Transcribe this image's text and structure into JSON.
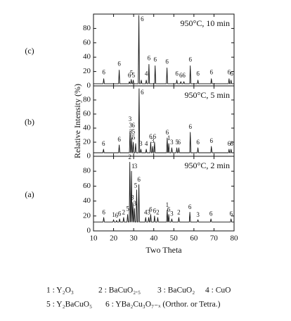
{
  "chart_data": [
    {
      "type": "line",
      "label": "(c)",
      "title": "950°C, 10 min",
      "color": "#111111",
      "xlim": [
        10,
        80
      ],
      "xticks": [
        10,
        20,
        30,
        40,
        50,
        60,
        70,
        80
      ],
      "ylim": [
        0,
        100
      ],
      "yticks": [
        0,
        20,
        40,
        60,
        80
      ],
      "x": [
        10,
        14.8,
        15.1,
        15.4,
        22.5,
        22.8,
        23.1,
        27.6,
        27.9,
        28.2,
        28.5,
        28.8,
        29.1,
        29.5,
        29.8,
        30.1,
        32.3,
        32.6,
        32.9,
        33.5,
        33.8,
        34.1,
        36.0,
        36.3,
        36.6,
        37.3,
        37.6,
        37.9,
        40.4,
        40.7,
        41.0,
        46.3,
        46.6,
        46.9,
        51.2,
        51.5,
        51.8,
        53.2,
        53.5,
        53.8,
        54.7,
        55.0,
        55.3,
        57.9,
        58.2,
        58.5,
        61.7,
        62.0,
        62.3,
        68.4,
        68.7,
        69.0,
        77.2,
        77.5,
        77.8,
        78.2,
        78.5,
        78.8,
        80
      ],
      "values": [
        3,
        3,
        10,
        3,
        3,
        22,
        3,
        3,
        6,
        3,
        3,
        9,
        3,
        3,
        8,
        3,
        3,
        98,
        3,
        3,
        8,
        3,
        3,
        8,
        3,
        3,
        30,
        3,
        3,
        28,
        3,
        3,
        25,
        3,
        3,
        8,
        3,
        3,
        6,
        3,
        3,
        6,
        3,
        3,
        28,
        3,
        3,
        8,
        3,
        3,
        10,
        3,
        3,
        10,
        3,
        3,
        8,
        3,
        3
      ],
      "annotations": [
        {
          "x": 15.1,
          "y": 18,
          "text": "6"
        },
        {
          "x": 22.8,
          "y": 30,
          "text": "6"
        },
        {
          "x": 27.9,
          "y": 14,
          "text": "6"
        },
        {
          "x": 28.9,
          "y": 17,
          "text": "5"
        },
        {
          "x": 29.9,
          "y": 14,
          "text": "5"
        },
        {
          "x": 34.3,
          "y": 92,
          "text": "6"
        },
        {
          "x": 36.3,
          "y": 16,
          "text": "4"
        },
        {
          "x": 37.6,
          "y": 38,
          "text": "6"
        },
        {
          "x": 40.7,
          "y": 36,
          "text": "6"
        },
        {
          "x": 46.6,
          "y": 33,
          "text": "6"
        },
        {
          "x": 51.5,
          "y": 16,
          "text": "6"
        },
        {
          "x": 53.5,
          "y": 14,
          "text": "6"
        },
        {
          "x": 55.0,
          "y": 14,
          "text": "6"
        },
        {
          "x": 58.2,
          "y": 36,
          "text": "6"
        },
        {
          "x": 62.0,
          "y": 16,
          "text": "6"
        },
        {
          "x": 68.7,
          "y": 18,
          "text": "6"
        },
        {
          "x": 77.5,
          "y": 18,
          "text": "6"
        },
        {
          "x": 78.8,
          "y": 16,
          "text": "6"
        }
      ]
    },
    {
      "type": "line",
      "label": "(b)",
      "title": "950°C, 5 min",
      "color": "#111111",
      "ylabel": "Relative Intensity  (%)",
      "xlim": [
        10,
        80
      ],
      "xticks": [
        10,
        20,
        30,
        40,
        50,
        60,
        70,
        80
      ],
      "ylim": [
        0,
        100
      ],
      "yticks": [
        0,
        20,
        40,
        60,
        80
      ],
      "x": [
        10,
        14.7,
        15.0,
        15.3,
        22.5,
        22.8,
        23.1,
        27.9,
        28.2,
        28.5,
        28.7,
        29.0,
        29.3,
        29.5,
        29.8,
        30.1,
        30.7,
        31.0,
        31.3,
        32.4,
        32.7,
        33.0,
        33.3,
        33.6,
        33.9,
        36.0,
        36.3,
        36.6,
        38.2,
        38.5,
        38.8,
        39.2,
        39.5,
        39.8,
        40.1,
        40.4,
        40.7,
        46.4,
        46.7,
        47.0,
        47.2,
        47.5,
        47.8,
        48.7,
        49.0,
        49.3,
        51.2,
        51.5,
        51.8,
        52.2,
        52.5,
        52.8,
        57.9,
        58.2,
        58.5,
        61.7,
        62.0,
        62.3,
        68.4,
        68.7,
        69.0,
        77.2,
        77.5,
        77.8,
        78.2,
        78.5,
        78.8,
        80
      ],
      "values": [
        5,
        5,
        10,
        5,
        5,
        16,
        5,
        5,
        36,
        5,
        5,
        26,
        5,
        5,
        20,
        5,
        5,
        18,
        5,
        5,
        96,
        5,
        5,
        10,
        5,
        5,
        10,
        5,
        5,
        20,
        5,
        5,
        14,
        5,
        5,
        20,
        5,
        5,
        26,
        5,
        5,
        18,
        5,
        5,
        12,
        5,
        5,
        12,
        5,
        5,
        12,
        5,
        5,
        34,
        5,
        5,
        12,
        5,
        5,
        14,
        5,
        5,
        10,
        5,
        5,
        10,
        5,
        5
      ],
      "annotations": [
        {
          "x": 15.0,
          "y": 17,
          "text": "6"
        },
        {
          "x": 22.8,
          "y": 23,
          "text": "6"
        },
        {
          "x": 28.2,
          "y": 52,
          "text": "3"
        },
        {
          "x": 28.4,
          "y": 43,
          "text": "3"
        },
        {
          "x": 29.8,
          "y": 43,
          "text": "6"
        },
        {
          "x": 28.6,
          "y": 34,
          "text": "3"
        },
        {
          "x": 29.9,
          "y": 34,
          "text": "5"
        },
        {
          "x": 28.8,
          "y": 26,
          "text": "5"
        },
        {
          "x": 30.0,
          "y": 26,
          "text": "5"
        },
        {
          "x": 34.3,
          "y": 90,
          "text": "6"
        },
        {
          "x": 33.6,
          "y": 17,
          "text": "3"
        },
        {
          "x": 36.3,
          "y": 17,
          "text": "4"
        },
        {
          "x": 38.5,
          "y": 27,
          "text": "6"
        },
        {
          "x": 39.5,
          "y": 21,
          "text": "3"
        },
        {
          "x": 40.4,
          "y": 27,
          "text": "6"
        },
        {
          "x": 46.7,
          "y": 33,
          "text": "6"
        },
        {
          "x": 47.5,
          "y": 25,
          "text": "1"
        },
        {
          "x": 49.0,
          "y": 19,
          "text": "3"
        },
        {
          "x": 51.5,
          "y": 19,
          "text": "5"
        },
        {
          "x": 52.6,
          "y": 19,
          "text": "6"
        },
        {
          "x": 58.2,
          "y": 41,
          "text": "6"
        },
        {
          "x": 62.0,
          "y": 19,
          "text": "6"
        },
        {
          "x": 68.7,
          "y": 21,
          "text": "6"
        },
        {
          "x": 77.5,
          "y": 17,
          "text": "6"
        },
        {
          "x": 78.8,
          "y": 17,
          "text": "6"
        }
      ]
    },
    {
      "type": "line",
      "label": "(a)",
      "title": "950°C, 2 min",
      "color": "#111111",
      "xlabel": "Two Theta",
      "xlim": [
        10,
        80
      ],
      "xticks": [
        10,
        20,
        30,
        40,
        50,
        60,
        70,
        80
      ],
      "ylim": [
        0,
        100
      ],
      "yticks": [
        0,
        20,
        40,
        60,
        80
      ],
      "x": [
        10,
        14.8,
        15.1,
        15.4,
        19.7,
        20.0,
        20.3,
        21.2,
        21.5,
        21.8,
        22.7,
        23.0,
        23.3,
        24.7,
        25.0,
        25.3,
        26.7,
        27.0,
        27.3,
        27.8,
        28.1,
        28.4,
        28.6,
        28.9,
        29.2,
        29.3,
        29.6,
        29.9,
        30.1,
        30.4,
        30.7,
        31.2,
        31.5,
        31.8,
        32.3,
        32.6,
        32.9,
        35.7,
        36.0,
        36.3,
        37.2,
        37.5,
        37.8,
        38.2,
        38.5,
        38.8,
        40.1,
        40.4,
        40.7,
        41.7,
        42.0,
        42.3,
        46.4,
        46.7,
        47.0,
        47.2,
        47.5,
        47.8,
        48.7,
        49.0,
        49.3,
        52.2,
        52.5,
        52.8,
        57.7,
        58.0,
        58.3,
        61.7,
        62.0,
        62.3,
        68.2,
        68.5,
        68.8,
        78.2,
        78.5,
        78.8,
        80
      ],
      "values": [
        12,
        12,
        18,
        12,
        12,
        15,
        12,
        12,
        14,
        12,
        12,
        16,
        12,
        12,
        18,
        12,
        12,
        22,
        12,
        12,
        92,
        12,
        12,
        80,
        12,
        12,
        38,
        12,
        12,
        30,
        12,
        12,
        55,
        12,
        12,
        62,
        12,
        12,
        18,
        12,
        12,
        18,
        12,
        12,
        22,
        12,
        12,
        20,
        12,
        12,
        18,
        12,
        12,
        28,
        12,
        12,
        22,
        12,
        12,
        16,
        12,
        12,
        18,
        12,
        12,
        25,
        12,
        12,
        15,
        12,
        12,
        16,
        12,
        12,
        16,
        12,
        12
      ],
      "annotations": [
        {
          "x": 15.1,
          "y": 24,
          "text": "6"
        },
        {
          "x": 20.0,
          "y": 21,
          "text": "1"
        },
        {
          "x": 21.5,
          "y": 20,
          "text": "6"
        },
        {
          "x": 23.0,
          "y": 22,
          "text": "6"
        },
        {
          "x": 25.0,
          "y": 24,
          "text": "2"
        },
        {
          "x": 27.0,
          "y": 29,
          "text": "5"
        },
        {
          "x": 28.1,
          "y": 98,
          "text": "2"
        },
        {
          "x": 29.7,
          "y": 86,
          "text": "1"
        },
        {
          "x": 31.0,
          "y": 86,
          "text": "3"
        },
        {
          "x": 31.0,
          "y": 60,
          "text": "5"
        },
        {
          "x": 32.6,
          "y": 68,
          "text": "6"
        },
        {
          "x": 29.4,
          "y": 44,
          "text": "3"
        },
        {
          "x": 30.5,
          "y": 36,
          "text": "3"
        },
        {
          "x": 36.0,
          "y": 24,
          "text": "4"
        },
        {
          "x": 37.5,
          "y": 24,
          "text": "3"
        },
        {
          "x": 38.5,
          "y": 28,
          "text": "6"
        },
        {
          "x": 40.4,
          "y": 26,
          "text": "6"
        },
        {
          "x": 42.0,
          "y": 24,
          "text": "2"
        },
        {
          "x": 46.7,
          "y": 34,
          "text": "1"
        },
        {
          "x": 47.5,
          "y": 28,
          "text": "6"
        },
        {
          "x": 49.0,
          "y": 22,
          "text": "3"
        },
        {
          "x": 52.5,
          "y": 24,
          "text": "2"
        },
        {
          "x": 58.0,
          "y": 31,
          "text": "6"
        },
        {
          "x": 62.0,
          "y": 21,
          "text": "3"
        },
        {
          "x": 68.5,
          "y": 22,
          "text": "6"
        },
        {
          "x": 78.5,
          "y": 22,
          "text": "6"
        }
      ]
    }
  ],
  "legend": [
    [
      "1 : Y₂O₃",
      "2 : BaCuO₂.₅",
      "3 : BaCuO₂",
      "4 : CuO"
    ],
    [
      "5 : Y₂BaCuO₅",
      "6 : YBa₂Cu₃O₇₋ₓ (Orthor. or Tetra.)"
    ]
  ]
}
